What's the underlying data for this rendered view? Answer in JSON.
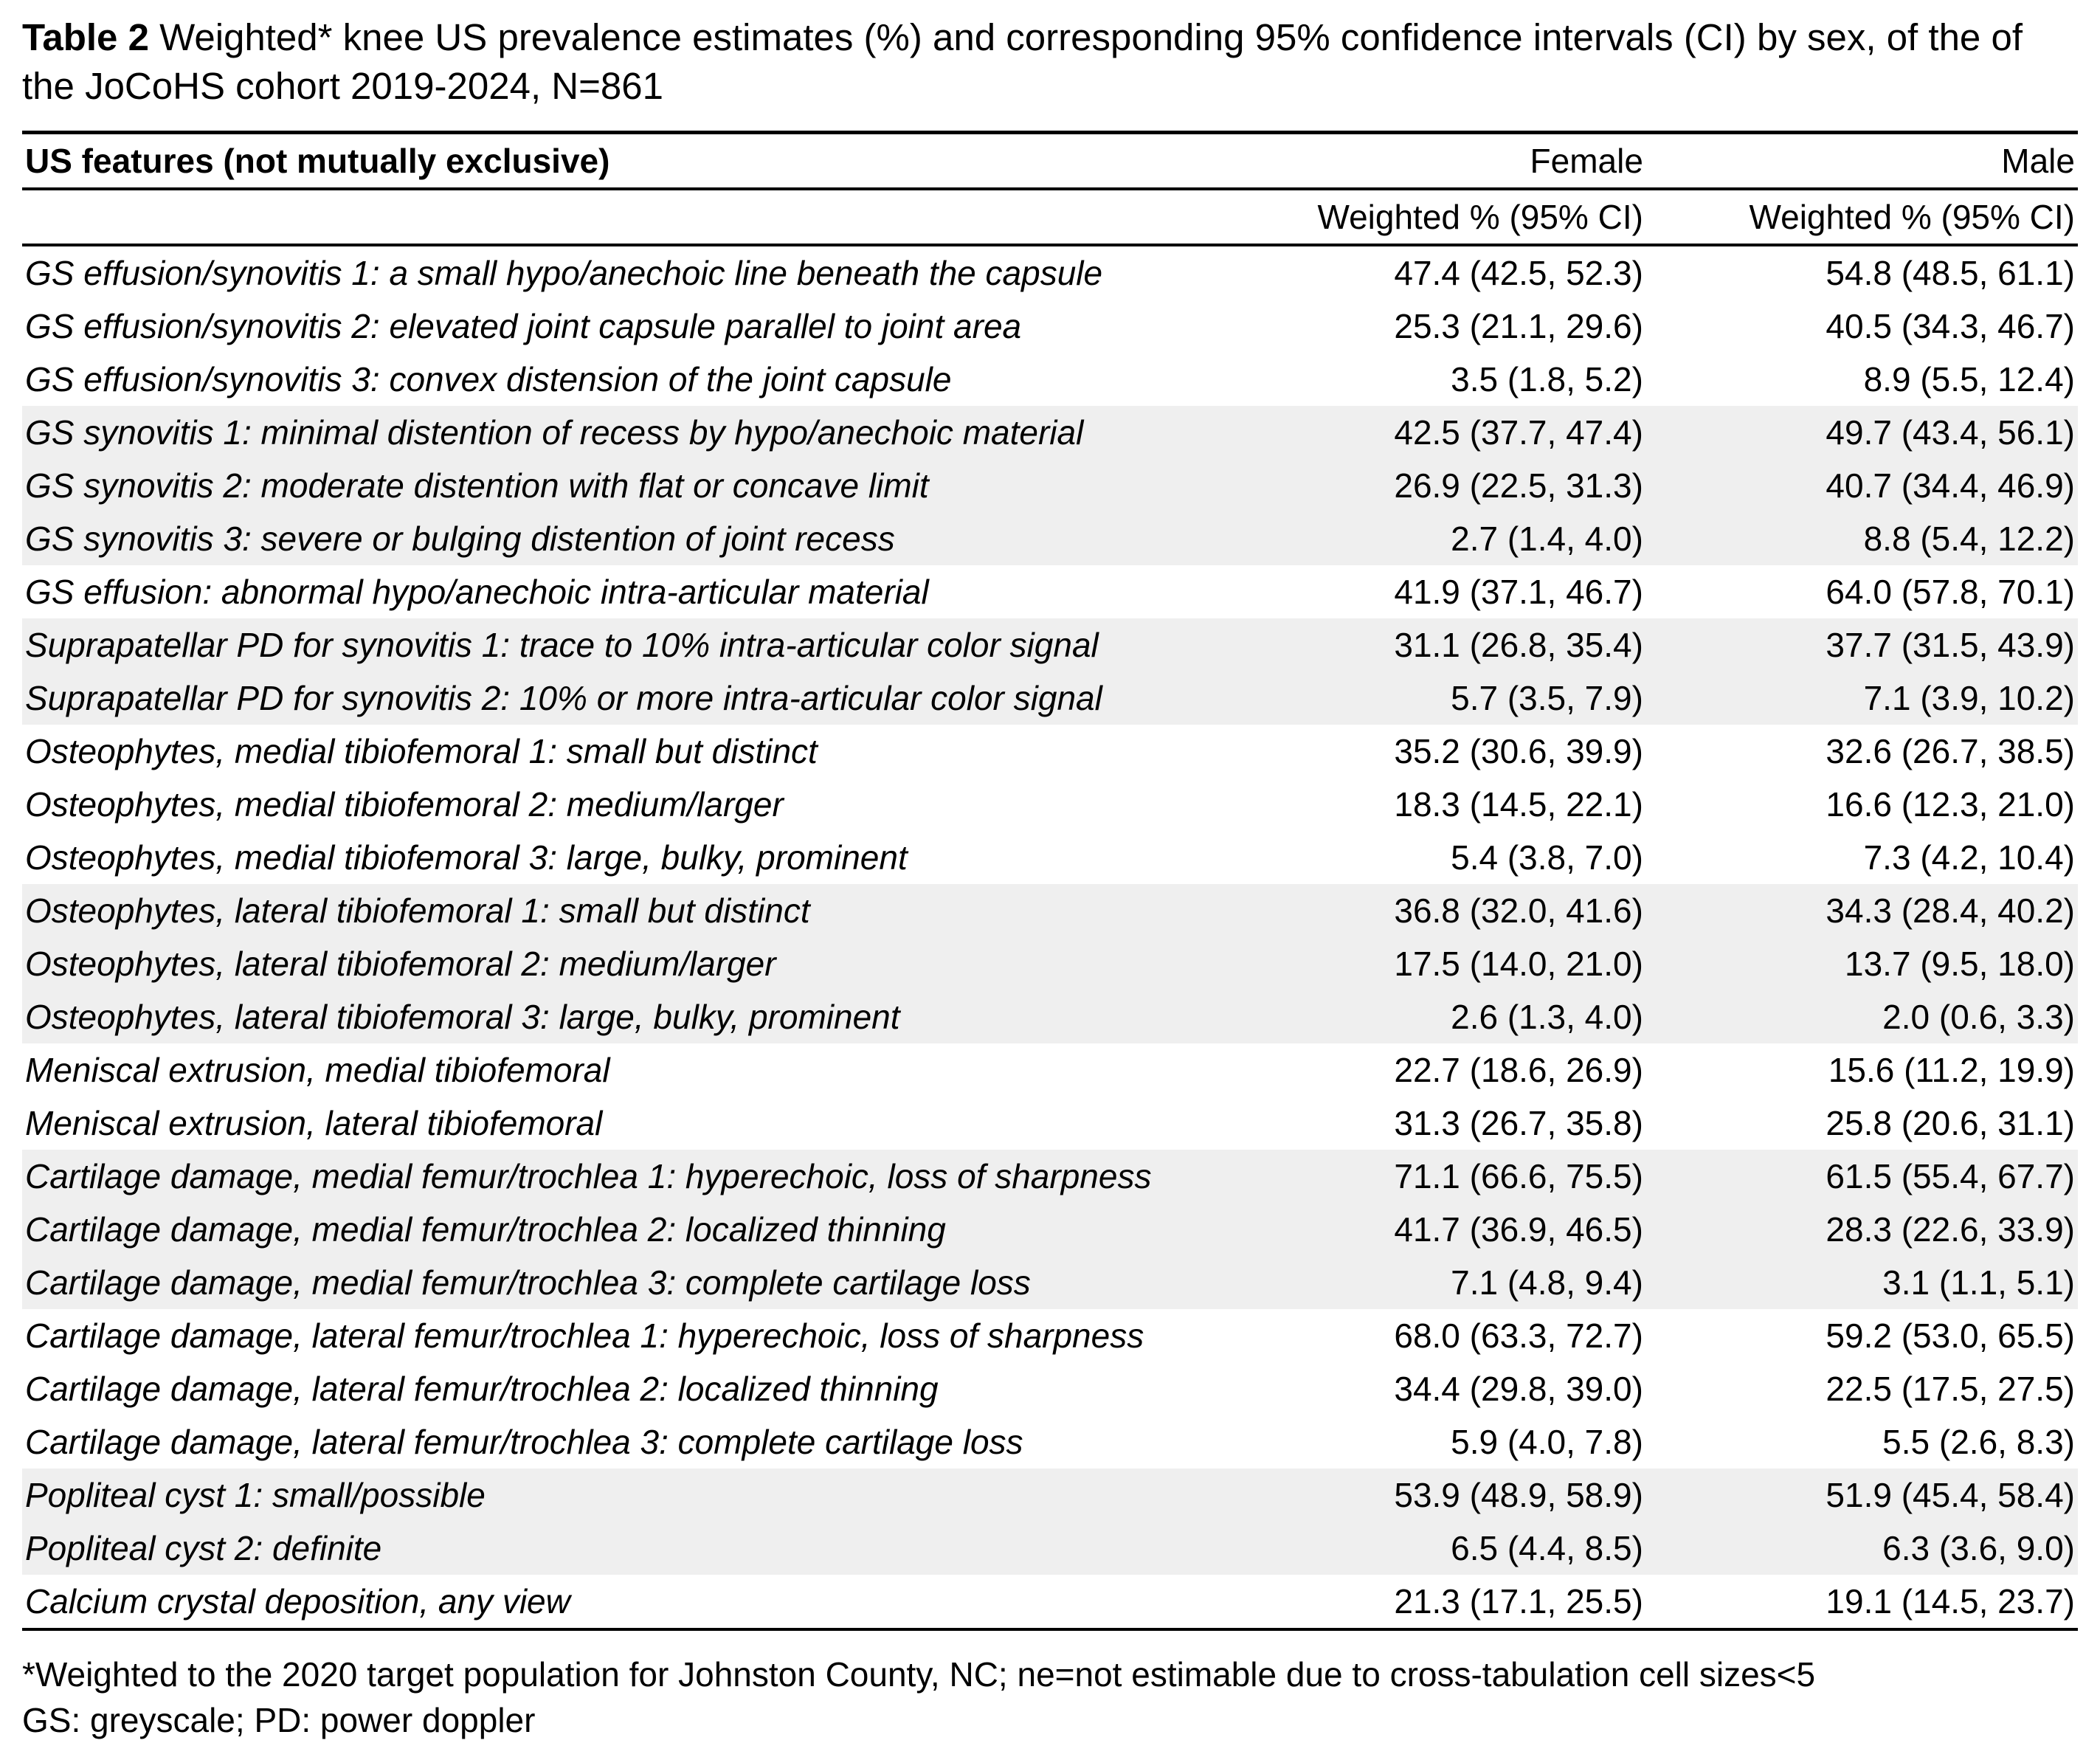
{
  "title": {
    "label": "Table 2",
    "text": " Weighted* knee US prevalence estimates (%) and corresponding 95% confidence intervals (CI) by sex, of the of the JoCoHS cohort 2019-2024, N=861"
  },
  "table": {
    "header": {
      "feature": "US features (not mutually exclusive)",
      "groups": [
        "Female",
        "Male"
      ],
      "subheaders": [
        "Weighted % (95% CI)",
        "Weighted % (95% CI)"
      ]
    },
    "rows": [
      {
        "feature": "GS effusion/synovitis 1: a small hypo/anechoic line beneath the capsule",
        "female": "47.4 (42.5, 52.3)",
        "male": "54.8 (48.5, 61.1)",
        "shaded": false
      },
      {
        "feature": "GS effusion/synovitis 2: elevated joint capsule parallel to joint area",
        "female": "25.3 (21.1, 29.6)",
        "male": "40.5 (34.3, 46.7)",
        "shaded": false
      },
      {
        "feature": "GS effusion/synovitis 3: convex distension of the joint capsule",
        "female": "3.5 (1.8, 5.2)",
        "male": "8.9 (5.5, 12.4)",
        "shaded": false
      },
      {
        "feature": "GS synovitis 1: minimal distention of recess by hypo/anechoic material",
        "female": "42.5 (37.7, 47.4)",
        "male": "49.7 (43.4, 56.1)",
        "shaded": true
      },
      {
        "feature": "GS synovitis 2: moderate distention with flat or concave limit",
        "female": "26.9 (22.5, 31.3)",
        "male": "40.7 (34.4, 46.9)",
        "shaded": true
      },
      {
        "feature": "GS synovitis 3: severe or bulging distention of joint recess",
        "female": "2.7 (1.4, 4.0)",
        "male": "8.8 (5.4, 12.2)",
        "shaded": true
      },
      {
        "feature": "GS effusion: abnormal hypo/anechoic intra-articular material",
        "female": "41.9 (37.1, 46.7)",
        "male": "64.0 (57.8, 70.1)",
        "shaded": false
      },
      {
        "feature": "Suprapatellar PD for synovitis 1: trace to 10% intra-articular color signal",
        "female": "31.1 (26.8, 35.4)",
        "male": "37.7 (31.5, 43.9)",
        "shaded": true
      },
      {
        "feature": "Suprapatellar PD for synovitis 2: 10% or more intra-articular color signal",
        "female": "5.7 (3.5, 7.9)",
        "male": "7.1 (3.9, 10.2)",
        "shaded": true
      },
      {
        "feature": "Osteophytes, medial tibiofemoral 1: small but distinct",
        "female": "35.2 (30.6, 39.9)",
        "male": "32.6 (26.7, 38.5)",
        "shaded": false
      },
      {
        "feature": "Osteophytes, medial tibiofemoral 2: medium/larger",
        "female": "18.3 (14.5, 22.1)",
        "male": "16.6 (12.3, 21.0)",
        "shaded": false
      },
      {
        "feature": "Osteophytes, medial tibiofemoral 3: large, bulky, prominent",
        "female": "5.4 (3.8, 7.0)",
        "male": "7.3 (4.2, 10.4)",
        "shaded": false
      },
      {
        "feature": "Osteophytes, lateral tibiofemoral 1: small but distinct",
        "female": "36.8 (32.0, 41.6)",
        "male": "34.3 (28.4, 40.2)",
        "shaded": true
      },
      {
        "feature": "Osteophytes, lateral tibiofemoral 2: medium/larger",
        "female": "17.5 (14.0, 21.0)",
        "male": "13.7 (9.5, 18.0)",
        "shaded": true
      },
      {
        "feature": "Osteophytes, lateral tibiofemoral 3: large, bulky, prominent",
        "female": "2.6 (1.3, 4.0)",
        "male": "2.0 (0.6, 3.3)",
        "shaded": true
      },
      {
        "feature": "Meniscal extrusion, medial tibiofemoral",
        "female": "22.7 (18.6, 26.9)",
        "male": "15.6 (11.2, 19.9)",
        "shaded": false
      },
      {
        "feature": "Meniscal extrusion, lateral tibiofemoral",
        "female": "31.3 (26.7, 35.8)",
        "male": "25.8 (20.6, 31.1)",
        "shaded": false
      },
      {
        "feature": "Cartilage damage, medial femur/trochlea 1: hyperechoic, loss of sharpness",
        "female": "71.1 (66.6, 75.5)",
        "male": "61.5 (55.4, 67.7)",
        "shaded": true
      },
      {
        "feature": "Cartilage damage, medial femur/trochlea 2: localized thinning",
        "female": "41.7 (36.9, 46.5)",
        "male": "28.3 (22.6, 33.9)",
        "shaded": true
      },
      {
        "feature": "Cartilage damage, medial femur/trochlea 3: complete cartilage loss",
        "female": "7.1 (4.8, 9.4)",
        "male": "3.1 (1.1, 5.1)",
        "shaded": true
      },
      {
        "feature": "Cartilage damage, lateral femur/trochlea 1: hyperechoic, loss of sharpness",
        "female": "68.0 (63.3, 72.7)",
        "male": "59.2 (53.0, 65.5)",
        "shaded": false
      },
      {
        "feature": "Cartilage damage, lateral femur/trochlea 2: localized thinning",
        "female": "34.4 (29.8, 39.0)",
        "male": "22.5 (17.5, 27.5)",
        "shaded": false
      },
      {
        "feature": "Cartilage damage, lateral femur/trochlea 3: complete cartilage loss",
        "female": "5.9 (4.0, 7.8)",
        "male": "5.5 (2.6, 8.3)",
        "shaded": false
      },
      {
        "feature": "Popliteal cyst 1: small/possible",
        "female": "53.9 (48.9, 58.9)",
        "male": "51.9 (45.4, 58.4)",
        "shaded": true
      },
      {
        "feature": "Popliteal cyst 2: definite",
        "female": "6.5 (4.4, 8.5)",
        "male": "6.3 (3.6, 9.0)",
        "shaded": true
      },
      {
        "feature": "Calcium crystal deposition, any view",
        "female": "21.3 (17.1, 25.5)",
        "male": "19.1 (14.5, 23.7)",
        "shaded": false
      }
    ]
  },
  "footnotes": [
    "*Weighted to the 2020 target population for Johnston County, NC; ne=not estimable due to cross-tabulation cell sizes<5",
    "GS: greyscale; PD: power doppler"
  ],
  "colors": {
    "shaded_row": "#efefef",
    "text": "#000000",
    "background": "#ffffff"
  }
}
